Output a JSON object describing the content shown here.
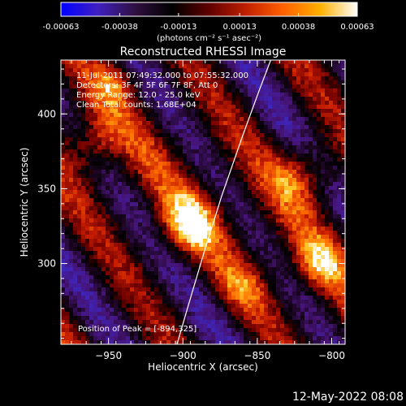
{
  "chart_data": {
    "type": "heatmap",
    "title": "Reconstructed RHESSI Image",
    "xlabel": "Heliocentric X (arcsec)",
    "ylabel": "Heliocentric Y (arcsec)",
    "xlim": [
      -982,
      -791
    ],
    "ylim": [
      246,
      436
    ],
    "x_ticks": [
      -950,
      -900,
      -850,
      -800
    ],
    "y_ticks": [
      300,
      350,
      400
    ],
    "colorbar": {
      "range": [
        -0.00063,
        0.00063
      ],
      "tick_values": [
        -0.00063,
        -0.00038,
        -0.00013,
        0.00013,
        0.00038,
        0.00063
      ],
      "tick_labels": [
        "-0.00063",
        "-0.00038",
        "-0.00013",
        "0.00013",
        "0.00038",
        "0.00063"
      ],
      "unit_label": "(photons cm⁻² s⁻¹ asec⁻²)",
      "colors": [
        "#0000ff",
        "#4020c0",
        "#301040",
        "#000000",
        "#600000",
        "#c02000",
        "#ff6000",
        "#ffb000",
        "#ffffff"
      ]
    },
    "annotations": [
      "11-Jul-2011 07:49:32.000 to 07:55:32.000",
      "Detectors: 3F 4F 5F 6F 7F 8F, Att 0",
      "Energy Range: 12.0 - 25.0 keV",
      "Clean     Total counts: 1.68E+04"
    ],
    "peak_label": "Position of Peak = [-894,325]",
    "peak": {
      "x": -894,
      "y": 325
    },
    "limb_curve": [
      [
        -904,
        246
      ],
      [
        -894,
        280
      ],
      [
        -885,
        310
      ],
      [
        -874,
        345
      ],
      [
        -860,
        385
      ],
      [
        -849,
        415
      ],
      [
        -841,
        436
      ]
    ]
  },
  "footer": {
    "date": "12-May-2022 08:08"
  }
}
